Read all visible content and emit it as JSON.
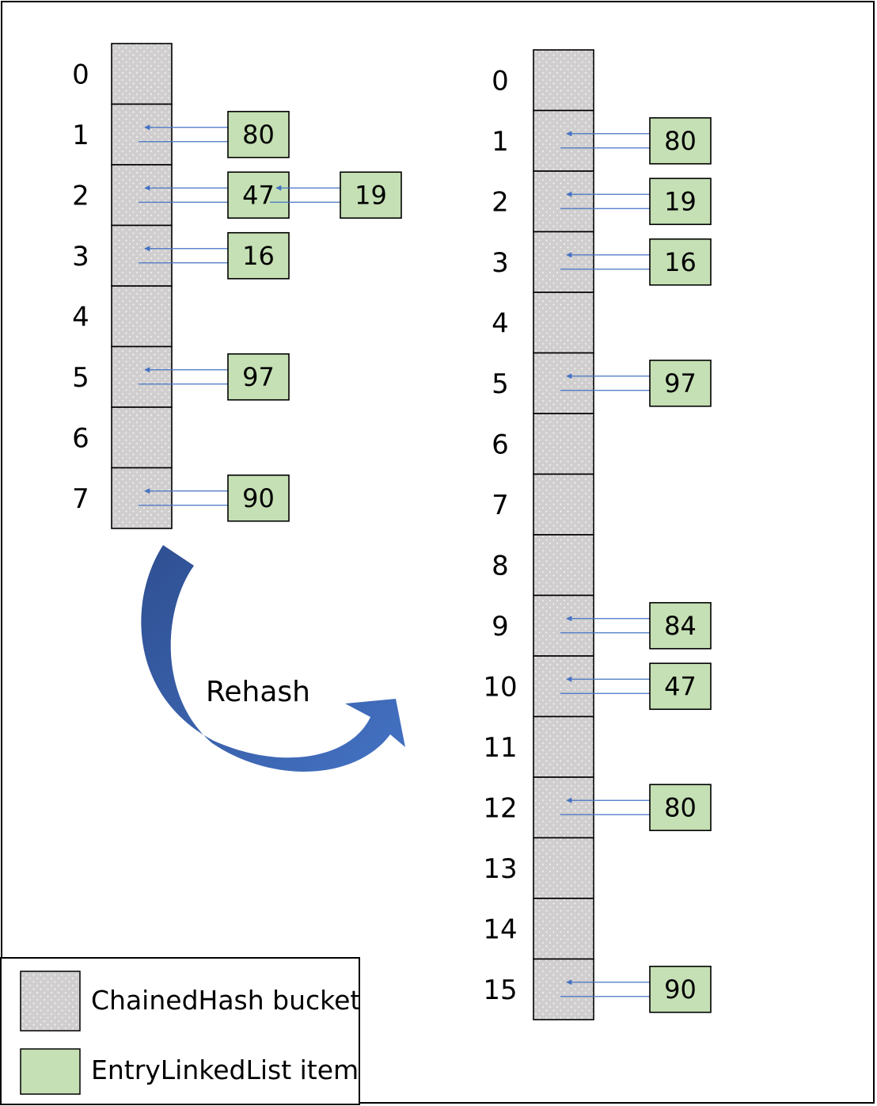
{
  "rehash_label": "Rehash",
  "legend": {
    "bucket_label": "ChainedHash bucket",
    "item_label": "EntryLinkedList item"
  },
  "colors": {
    "bucket_fill": "#d0cece",
    "item_fill": "#c5e0b4",
    "link": "#4472c4",
    "rehash_arrow": "#3a5fae"
  },
  "old_table": {
    "indices": [
      "0",
      "1",
      "2",
      "3",
      "4",
      "5",
      "6",
      "7"
    ],
    "entries": [
      {
        "bucket": "1",
        "chain": [
          "80"
        ]
      },
      {
        "bucket": "2",
        "chain": [
          "47",
          "19"
        ]
      },
      {
        "bucket": "3",
        "chain": [
          "16"
        ]
      },
      {
        "bucket": "5",
        "chain": [
          "97"
        ]
      },
      {
        "bucket": "7",
        "chain": [
          "90"
        ]
      }
    ]
  },
  "new_table": {
    "indices": [
      "0",
      "1",
      "2",
      "3",
      "4",
      "5",
      "6",
      "7",
      "8",
      "9",
      "10",
      "11",
      "12",
      "13",
      "14",
      "15"
    ],
    "entries": [
      {
        "bucket": "1",
        "chain": [
          "80"
        ]
      },
      {
        "bucket": "2",
        "chain": [
          "19"
        ]
      },
      {
        "bucket": "3",
        "chain": [
          "16"
        ]
      },
      {
        "bucket": "5",
        "chain": [
          "97"
        ]
      },
      {
        "bucket": "9",
        "chain": [
          "84"
        ]
      },
      {
        "bucket": "10",
        "chain": [
          "47"
        ]
      },
      {
        "bucket": "12",
        "chain": [
          "80"
        ]
      },
      {
        "bucket": "15",
        "chain": [
          "90"
        ]
      }
    ]
  }
}
